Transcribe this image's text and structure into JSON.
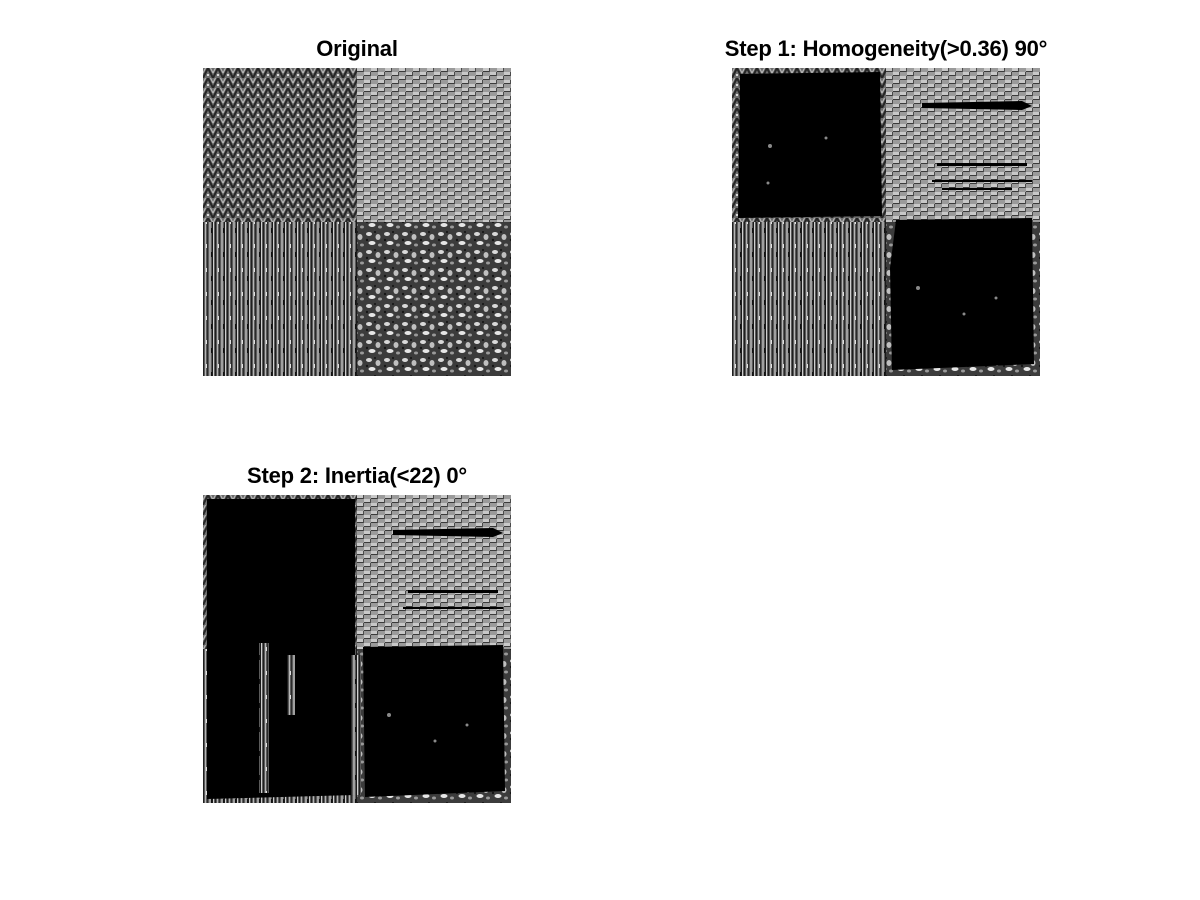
{
  "panels": [
    {
      "title": "Original"
    },
    {
      "title": "Step 1: Homogeneity(>0.36) 90°"
    },
    {
      "title": "Step 2: Inertia(<22) 0°"
    }
  ],
  "colors": {
    "background": "#ffffff",
    "title_text": "#000000",
    "segmented_region": "#000000"
  }
}
